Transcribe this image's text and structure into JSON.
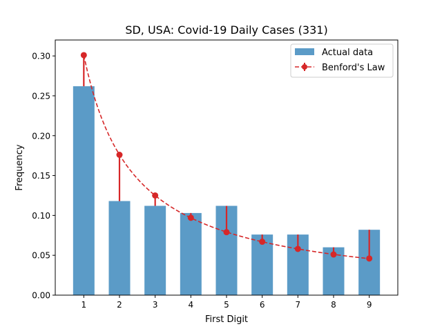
{
  "chart_data": {
    "type": "bar",
    "title": "SD, USA: Covid-19 Daily Cases (331)",
    "xlabel": "First Digit",
    "ylabel": "Frequency",
    "categories": [
      "1",
      "2",
      "3",
      "4",
      "5",
      "6",
      "7",
      "8",
      "9"
    ],
    "x": [
      1,
      2,
      3,
      4,
      5,
      6,
      7,
      8,
      9
    ],
    "ylim": [
      0,
      0.32
    ],
    "yticks": [
      "0.00",
      "0.05",
      "0.10",
      "0.15",
      "0.20",
      "0.25",
      "0.30"
    ],
    "grid": false,
    "legend_position": "top-right",
    "series": [
      {
        "name": "Actual data",
        "type": "bar",
        "color": "#5b9bc7",
        "values": [
          0.262,
          0.118,
          0.112,
          0.103,
          0.112,
          0.076,
          0.076,
          0.06,
          0.082
        ]
      },
      {
        "name": "Benford's Law",
        "type": "line",
        "style": "dashed",
        "marker": "circle",
        "error_bars": true,
        "color": "#d62728",
        "values": [
          0.301,
          0.176,
          0.125,
          0.097,
          0.079,
          0.067,
          0.058,
          0.051,
          0.046
        ]
      }
    ]
  }
}
